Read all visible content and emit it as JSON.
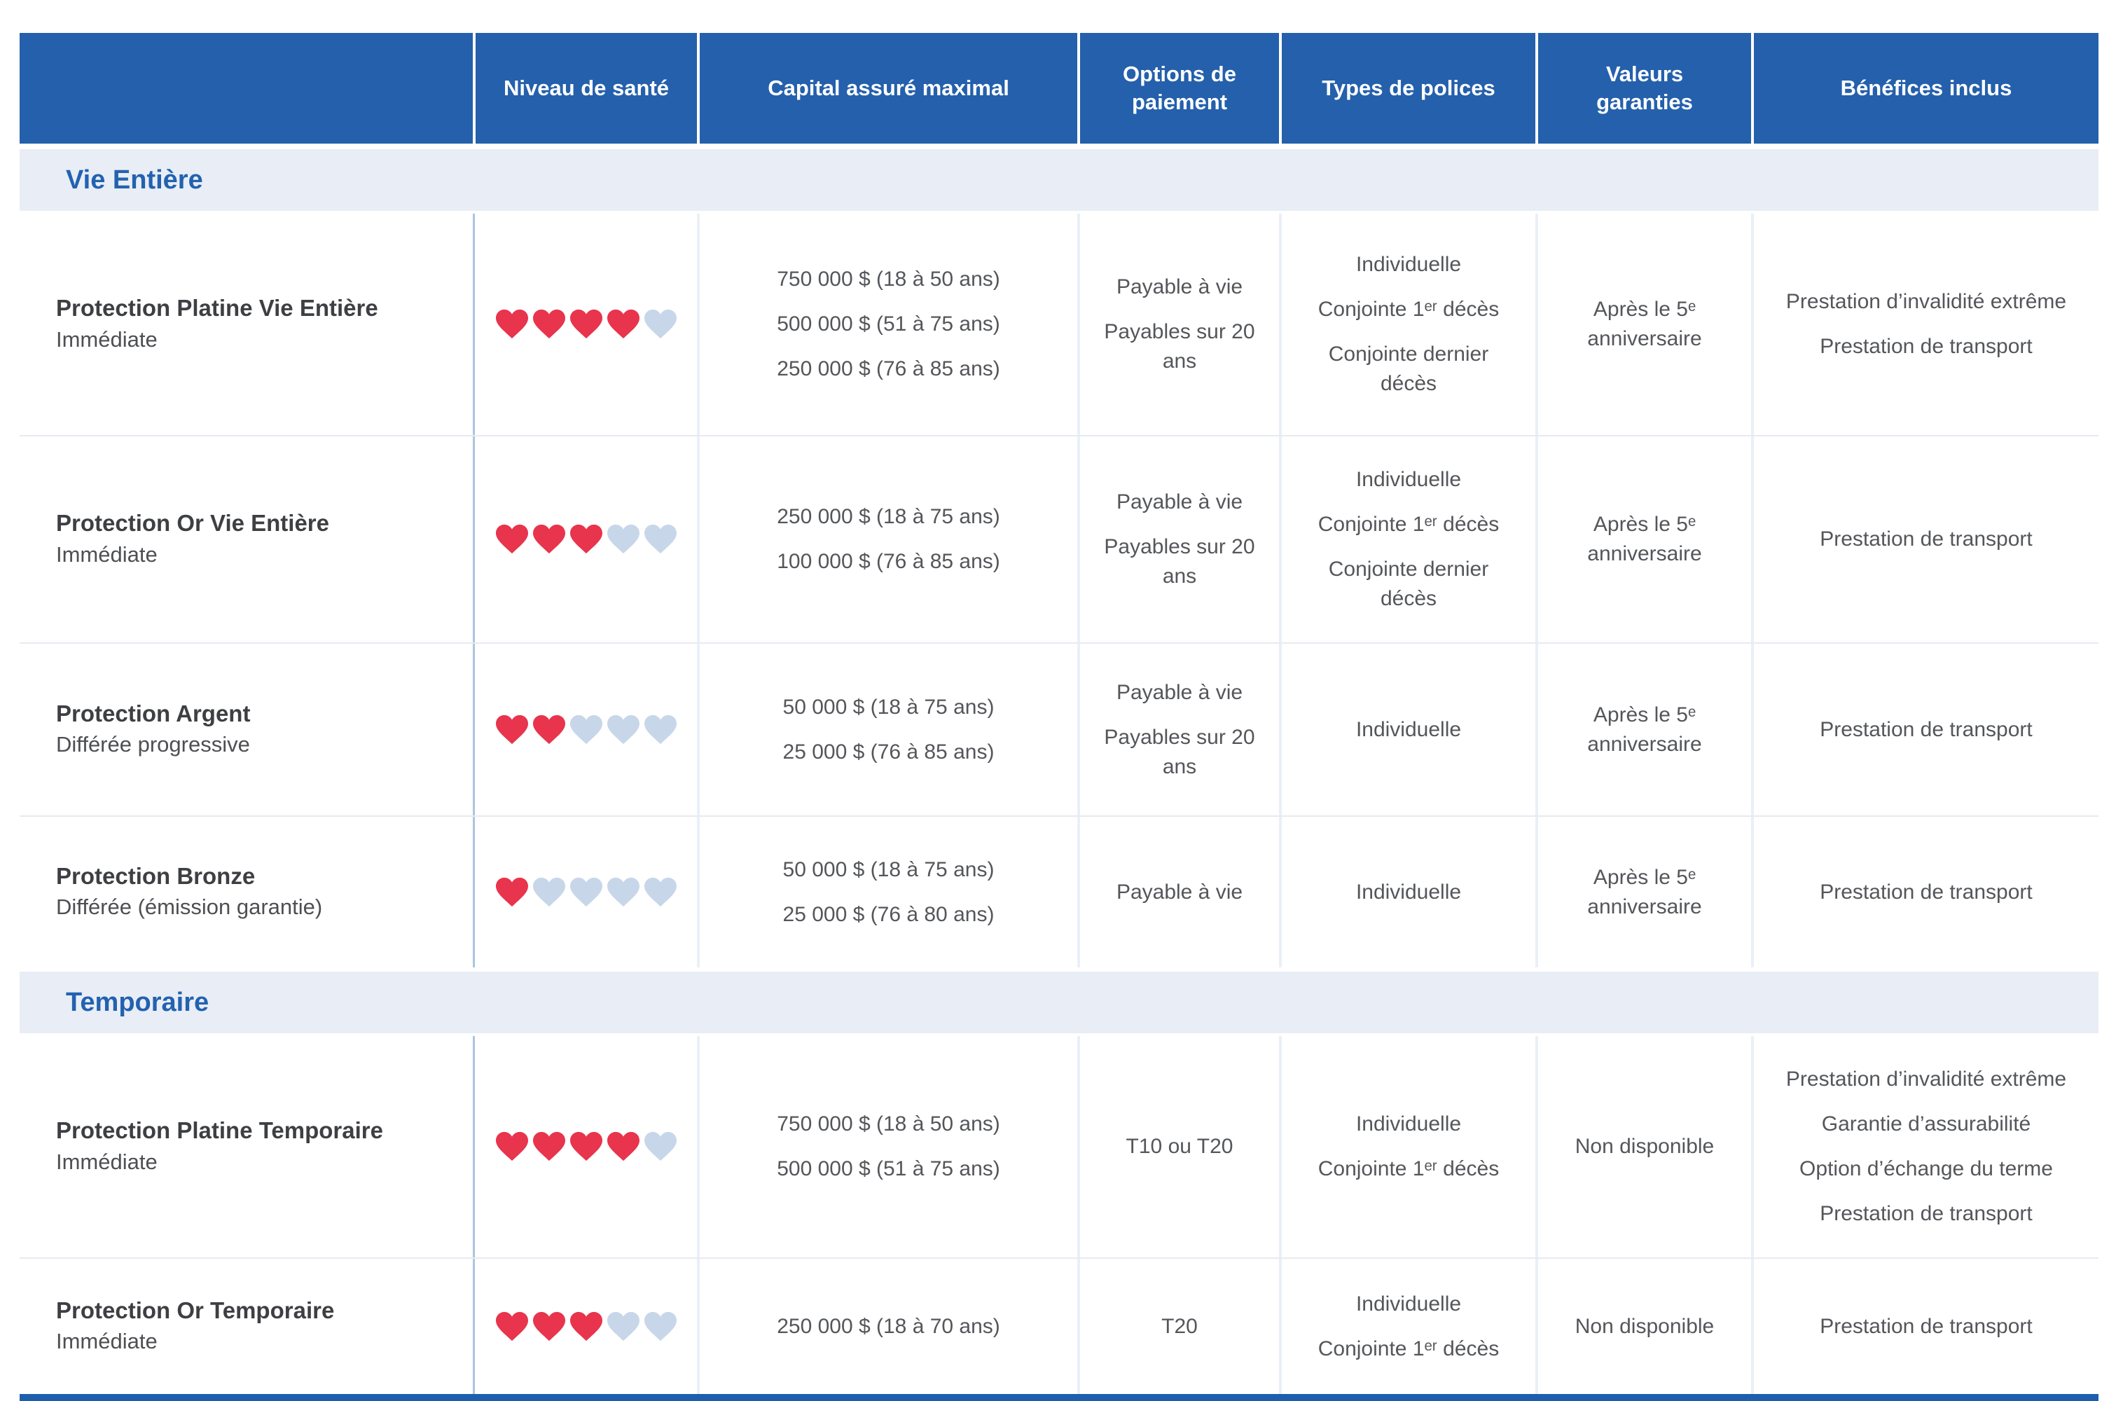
{
  "table": {
    "columns": [
      "",
      "Niveau de santé",
      "Capital assuré maximal",
      "Options de paiement",
      "Types de polices",
      "Valeurs garanties",
      "Bénéfices inclus"
    ],
    "health_scale_max": 5,
    "sections": [
      {
        "title": "Vie Entière",
        "rows": [
          {
            "product": "Protection Platine Vie Entière",
            "subtitle": "Immédiate",
            "health_level": 4,
            "capital": [
              "750 000 $ (18 à 50 ans)",
              "500 000 $ (51 à 75 ans)",
              "250 000 $ (76 à 85 ans)"
            ],
            "payment_options": [
              "Payable à vie",
              "Payables sur 20 ans"
            ],
            "policy_types": [
              "Individuelle",
              "Conjointe 1ᵉʳ décès",
              "Conjointe dernier décès"
            ],
            "guaranteed_values": "Après le 5ᵉ anniversaire",
            "benefits": [
              "Prestation d’invalidité extrême",
              "Prestation de transport"
            ]
          },
          {
            "product": "Protection Or Vie Entière",
            "subtitle": "Immédiate",
            "health_level": 3,
            "capital": [
              "250 000 $ (18 à 75 ans)",
              "100 000 $ (76 à 85 ans)"
            ],
            "payment_options": [
              "Payable à vie",
              "Payables sur 20 ans"
            ],
            "policy_types": [
              "Individuelle",
              "Conjointe 1ᵉʳ décès",
              "Conjointe dernier décès"
            ],
            "guaranteed_values": "Après le 5ᵉ anniversaire",
            "benefits": [
              "Prestation de transport"
            ]
          },
          {
            "product": "Protection Argent",
            "subtitle": "Différée progressive",
            "health_level": 2,
            "capital": [
              "50 000 $ (18 à 75 ans)",
              "25 000 $ (76 à 85 ans)"
            ],
            "payment_options": [
              "Payable à vie",
              "Payables sur 20 ans"
            ],
            "policy_types": [
              "Individuelle"
            ],
            "guaranteed_values": "Après le 5ᵉ anniversaire",
            "benefits": [
              "Prestation de transport"
            ]
          },
          {
            "product": "Protection Bronze",
            "subtitle": "Différée (émission garantie)",
            "health_level": 1,
            "capital": [
              "50 000 $ (18 à 75 ans)",
              "25 000 $ (76 à 80 ans)"
            ],
            "payment_options": [
              "Payable à vie"
            ],
            "policy_types": [
              "Individuelle"
            ],
            "guaranteed_values": "Après le 5ᵉ anniversaire",
            "benefits": [
              "Prestation de transport"
            ]
          }
        ]
      },
      {
        "title": "Temporaire",
        "rows": [
          {
            "product": "Protection Platine Temporaire",
            "subtitle": "Immédiate",
            "health_level": 4,
            "capital": [
              "750 000 $ (18 à 50 ans)",
              "500 000 $ (51 à 75 ans)"
            ],
            "payment_options": [
              "T10 ou T20"
            ],
            "policy_types": [
              "Individuelle",
              "Conjointe 1ᵉʳ décès"
            ],
            "guaranteed_values": "Non disponible",
            "benefits": [
              "Prestation d’invalidité extrême",
              "Garantie d’assurabilité",
              "Option d’échange du terme",
              "Prestation de transport"
            ]
          },
          {
            "product": "Protection Or Temporaire",
            "subtitle": "Immédiate",
            "health_level": 3,
            "capital": [
              "250 000 $ (18 à 70 ans)"
            ],
            "payment_options": [
              "T20"
            ],
            "policy_types": [
              "Individuelle",
              "Conjointe 1ᵉʳ décès"
            ],
            "guaranteed_values": "Non disponible",
            "benefits": [
              "Prestation de transport"
            ]
          }
        ]
      }
    ]
  },
  "colors": {
    "header_bg": "#2460AC",
    "section_bg": "#E9EDF5",
    "section_text": "#2262B0",
    "heart_filled": "#E8344C",
    "heart_empty": "#C7D7E9",
    "bottom_border": "#1D5FAD",
    "first_divider": "#A9C6E2"
  }
}
